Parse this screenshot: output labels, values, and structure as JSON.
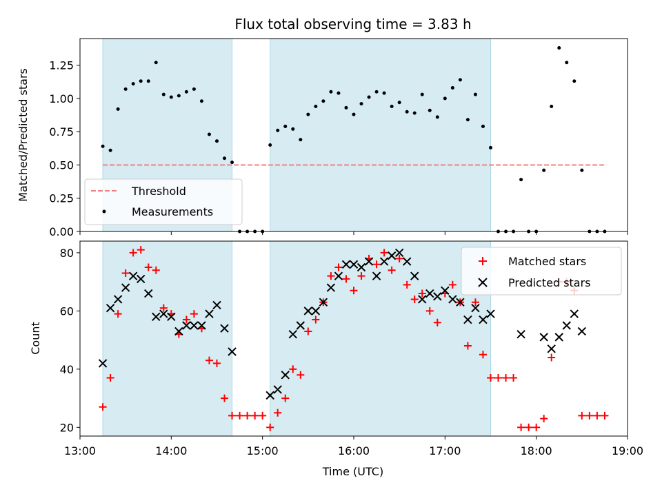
{
  "chart_data": [
    {
      "type": "scatter",
      "title": "Flux total observing time = 3.83 h",
      "xlabel": "",
      "ylabel": "Matched/Predicted stars",
      "xlim": [
        "13:00",
        "19:00"
      ],
      "ylim": [
        0,
        1.45
      ],
      "yticks": [
        "0.00",
        "0.25",
        "0.50",
        "0.75",
        "1.00",
        "1.25"
      ],
      "grid": false,
      "legend_position": "lower-left",
      "legend": [
        "Threshold",
        "Measurements"
      ],
      "observing_windows": [
        [
          "13:15",
          "14:40"
        ],
        [
          "15:05",
          "17:30"
        ]
      ],
      "threshold": {
        "name": "Threshold",
        "value": 0.5,
        "x_range": [
          "13:15",
          "18:45"
        ],
        "color": "#f08080",
        "style": "dashed"
      },
      "series": [
        {
          "name": "Measurements",
          "color": "#000000",
          "marker": "dot",
          "x": [
            "13:15",
            "13:20",
            "13:25",
            "13:30",
            "13:35",
            "13:40",
            "13:45",
            "13:50",
            "13:55",
            "14:00",
            "14:05",
            "14:10",
            "14:15",
            "14:20",
            "14:25",
            "14:30",
            "14:35",
            "14:40",
            "14:45",
            "14:50",
            "14:55",
            "15:00",
            "15:05",
            "15:10",
            "15:15",
            "15:20",
            "15:25",
            "15:30",
            "15:35",
            "15:40",
            "15:45",
            "15:50",
            "15:55",
            "16:00",
            "16:05",
            "16:10",
            "16:15",
            "16:20",
            "16:25",
            "16:30",
            "16:35",
            "16:40",
            "16:45",
            "16:50",
            "16:55",
            "17:00",
            "17:05",
            "17:10",
            "17:15",
            "17:20",
            "17:25",
            "17:30",
            "17:35",
            "17:40",
            "17:45",
            "17:50",
            "17:55",
            "18:00",
            "18:05",
            "18:10",
            "18:15",
            "18:20",
            "18:25",
            "18:30",
            "18:35",
            "18:40",
            "18:45"
          ],
          "y": [
            0.64,
            0.61,
            0.92,
            1.07,
            1.11,
            1.13,
            1.13,
            1.27,
            1.03,
            1.01,
            1.02,
            1.05,
            1.07,
            0.98,
            0.73,
            0.68,
            0.55,
            0.52,
            0.0,
            0.0,
            0.0,
            0.0,
            0.65,
            0.76,
            0.79,
            0.77,
            0.69,
            0.88,
            0.94,
            0.98,
            1.05,
            1.04,
            0.93,
            0.88,
            0.96,
            1.01,
            1.05,
            1.04,
            0.94,
            0.97,
            0.9,
            0.89,
            1.03,
            0.91,
            0.86,
            1.0,
            1.08,
            1.14,
            0.84,
            1.03,
            0.79,
            0.63,
            0.0,
            0.0,
            0.0,
            0.39,
            0.0,
            0.0,
            0.46,
            0.94,
            1.38,
            1.27,
            1.13,
            0.46,
            0.0,
            0.0,
            0.0
          ]
        }
      ]
    },
    {
      "type": "scatter",
      "title": "",
      "xlabel": "Time (UTC)",
      "ylabel": "Count",
      "xlim": [
        "13:00",
        "19:00"
      ],
      "ylim": [
        17,
        84
      ],
      "xticks": [
        "13:00",
        "14:00",
        "15:00",
        "16:00",
        "17:00",
        "18:00",
        "19:00"
      ],
      "yticks": [
        "20",
        "40",
        "60",
        "80"
      ],
      "grid": false,
      "legend_position": "upper-right",
      "legend": [
        "Matched stars",
        "Predicted stars"
      ],
      "observing_windows": [
        [
          "13:15",
          "14:40"
        ],
        [
          "15:05",
          "17:30"
        ]
      ],
      "series": [
        {
          "name": "Matched stars",
          "color": "#ff0000",
          "marker": "plus",
          "x": [
            "13:15",
            "13:20",
            "13:25",
            "13:30",
            "13:35",
            "13:40",
            "13:45",
            "13:50",
            "13:55",
            "14:00",
            "14:05",
            "14:10",
            "14:15",
            "14:20",
            "14:25",
            "14:30",
            "14:35",
            "14:40",
            "14:45",
            "14:50",
            "14:55",
            "15:00",
            "15:05",
            "15:10",
            "15:15",
            "15:20",
            "15:25",
            "15:30",
            "15:35",
            "15:40",
            "15:45",
            "15:50",
            "15:55",
            "16:00",
            "16:05",
            "16:10",
            "16:15",
            "16:20",
            "16:25",
            "16:30",
            "16:35",
            "16:40",
            "16:45",
            "16:50",
            "16:55",
            "17:00",
            "17:05",
            "17:10",
            "17:15",
            "17:20",
            "17:25",
            "17:30",
            "17:35",
            "17:40",
            "17:45",
            "17:50",
            "17:55",
            "18:00",
            "18:05",
            "18:10",
            "18:15",
            "18:20",
            "18:25",
            "18:30",
            "18:35",
            "18:40",
            "18:45"
          ],
          "y": [
            27,
            37,
            59,
            73,
            80,
            81,
            75,
            74,
            61,
            59,
            52,
            57,
            59,
            54,
            43,
            42,
            30,
            24,
            24,
            24,
            24,
            24,
            20,
            25,
            30,
            40,
            38,
            53,
            57,
            63,
            72,
            75,
            71,
            67,
            72,
            78,
            76,
            80,
            74,
            78,
            69,
            64,
            66,
            60,
            56,
            66,
            69,
            63,
            48,
            63,
            45,
            37,
            37,
            37,
            37,
            20,
            20,
            20,
            23,
            44,
            70,
            70,
            67,
            24,
            24,
            24,
            24
          ]
        },
        {
          "name": "Predicted stars",
          "color": "#000000",
          "marker": "x",
          "x": [
            "13:15",
            "13:20",
            "13:25",
            "13:30",
            "13:35",
            "13:40",
            "13:45",
            "13:50",
            "13:55",
            "14:00",
            "14:05",
            "14:10",
            "14:15",
            "14:20",
            "14:25",
            "14:30",
            "14:35",
            "14:40",
            "15:05",
            "15:10",
            "15:15",
            "15:20",
            "15:25",
            "15:30",
            "15:35",
            "15:40",
            "15:45",
            "15:50",
            "15:55",
            "16:00",
            "16:05",
            "16:10",
            "16:15",
            "16:20",
            "16:25",
            "16:30",
            "16:35",
            "16:40",
            "16:45",
            "16:50",
            "16:55",
            "17:00",
            "17:05",
            "17:10",
            "17:15",
            "17:20",
            "17:25",
            "17:30",
            "17:50",
            "18:05",
            "18:10",
            "18:15",
            "18:20",
            "18:25",
            "18:30"
          ],
          "y": [
            42,
            61,
            64,
            68,
            72,
            71,
            66,
            58,
            59,
            58,
            53,
            55,
            55,
            55,
            59,
            62,
            54,
            46,
            31,
            33,
            38,
            52,
            55,
            60,
            60,
            63,
            68,
            72,
            76,
            76,
            75,
            77,
            72,
            77,
            79,
            80,
            77,
            72,
            64,
            66,
            65,
            67,
            64,
            63,
            57,
            61,
            57,
            59,
            52,
            51,
            47,
            51,
            55,
            59,
            53
          ]
        }
      ]
    }
  ]
}
